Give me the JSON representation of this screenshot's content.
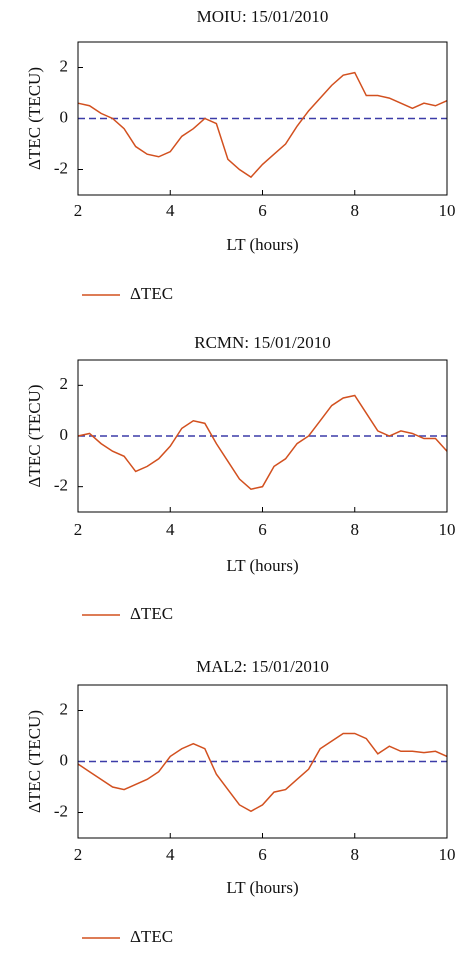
{
  "chart_data": [
    {
      "type": "line",
      "title": "MOIU: 15/01/2010",
      "xlabel": "LT (hours)",
      "ylabel": "ΔTEC (TECU)",
      "x": [
        2,
        2.25,
        2.5,
        2.75,
        3,
        3.25,
        3.5,
        3.75,
        4,
        4.25,
        4.5,
        4.75,
        5,
        5.25,
        5.5,
        5.75,
        6,
        6.25,
        6.5,
        6.75,
        7,
        7.25,
        7.5,
        7.75,
        8,
        8.25,
        8.5,
        8.75,
        9,
        9.25,
        9.5,
        9.75,
        10
      ],
      "series": [
        {
          "name": "ΔTEC",
          "color": "#d2501f",
          "values": [
            0.6,
            0.5,
            0.2,
            0,
            -0.4,
            -1.1,
            -1.4,
            -1.5,
            -1.3,
            -0.7,
            -0.4,
            0,
            -0.2,
            -1.6,
            -2,
            -2.3,
            -1.8,
            -1.4,
            -1,
            -0.3,
            0.3,
            0.8,
            1.3,
            1.7,
            1.8,
            0.9,
            0.9,
            0.8,
            0.6,
            0.4,
            0.6,
            0.5,
            0.7
          ]
        }
      ],
      "hline": {
        "value": 0,
        "color": "#3c3ca8"
      },
      "xlim": [
        2,
        10
      ],
      "xticks": [
        2,
        4,
        6,
        8,
        10
      ],
      "ylim": [
        -3,
        3
      ],
      "yticks": [
        -2,
        0,
        2
      ]
    },
    {
      "type": "line",
      "title": "RCMN: 15/01/2010",
      "xlabel": "LT (hours)",
      "ylabel": "ΔTEC (TECU)",
      "x": [
        2,
        2.25,
        2.5,
        2.75,
        3,
        3.25,
        3.5,
        3.75,
        4,
        4.25,
        4.5,
        4.75,
        5,
        5.25,
        5.5,
        5.75,
        6,
        6.25,
        6.5,
        6.75,
        7,
        7.25,
        7.5,
        7.75,
        8,
        8.25,
        8.5,
        8.75,
        9,
        9.25,
        9.5,
        9.75,
        10
      ],
      "series": [
        {
          "name": "ΔTEC",
          "color": "#d2501f",
          "values": [
            0,
            0.1,
            -0.3,
            -0.6,
            -0.8,
            -1.4,
            -1.2,
            -0.9,
            -0.4,
            0.3,
            0.6,
            0.5,
            -0.3,
            -1,
            -1.7,
            -2.1,
            -2,
            -1.2,
            -0.9,
            -0.3,
            0,
            0.6,
            1.2,
            1.5,
            1.6,
            0.9,
            0.2,
            0,
            0.2,
            0.1,
            -0.1,
            -0.1,
            -0.6
          ]
        }
      ],
      "hline": {
        "value": 0,
        "color": "#3c3ca8"
      },
      "xlim": [
        2,
        10
      ],
      "xticks": [
        2,
        4,
        6,
        8,
        10
      ],
      "ylim": [
        -3,
        3
      ],
      "yticks": [
        -2,
        0,
        2
      ]
    },
    {
      "type": "line",
      "title": "MAL2: 15/01/2010",
      "xlabel": "LT (hours)",
      "ylabel": "ΔTEC (TECU)",
      "x": [
        2,
        2.25,
        2.5,
        2.75,
        3,
        3.25,
        3.5,
        3.75,
        4,
        4.25,
        4.5,
        4.75,
        5,
        5.25,
        5.5,
        5.75,
        6,
        6.25,
        6.5,
        6.75,
        7,
        7.25,
        7.5,
        7.75,
        8,
        8.25,
        8.5,
        8.75,
        9,
        9.25,
        9.5,
        9.75,
        10
      ],
      "series": [
        {
          "name": "ΔTEC",
          "color": "#d2501f",
          "values": [
            -0.1,
            -0.4,
            -0.7,
            -1,
            -1.1,
            -0.9,
            -0.7,
            -0.4,
            0.2,
            0.5,
            0.7,
            0.5,
            -0.5,
            -1.1,
            -1.7,
            -1.95,
            -1.7,
            -1.2,
            -1.1,
            -0.7,
            -0.3,
            0.5,
            0.8,
            1.1,
            1.1,
            0.9,
            0.3,
            0.6,
            0.4,
            0.4,
            0.35,
            0.4,
            0.2
          ]
        }
      ],
      "hline": {
        "value": 0,
        "color": "#3c3ca8"
      },
      "xlim": [
        2,
        10
      ],
      "xticks": [
        2,
        4,
        6,
        8,
        10
      ],
      "ylim": [
        -3,
        3
      ],
      "yticks": [
        -2,
        0,
        2
      ]
    }
  ]
}
